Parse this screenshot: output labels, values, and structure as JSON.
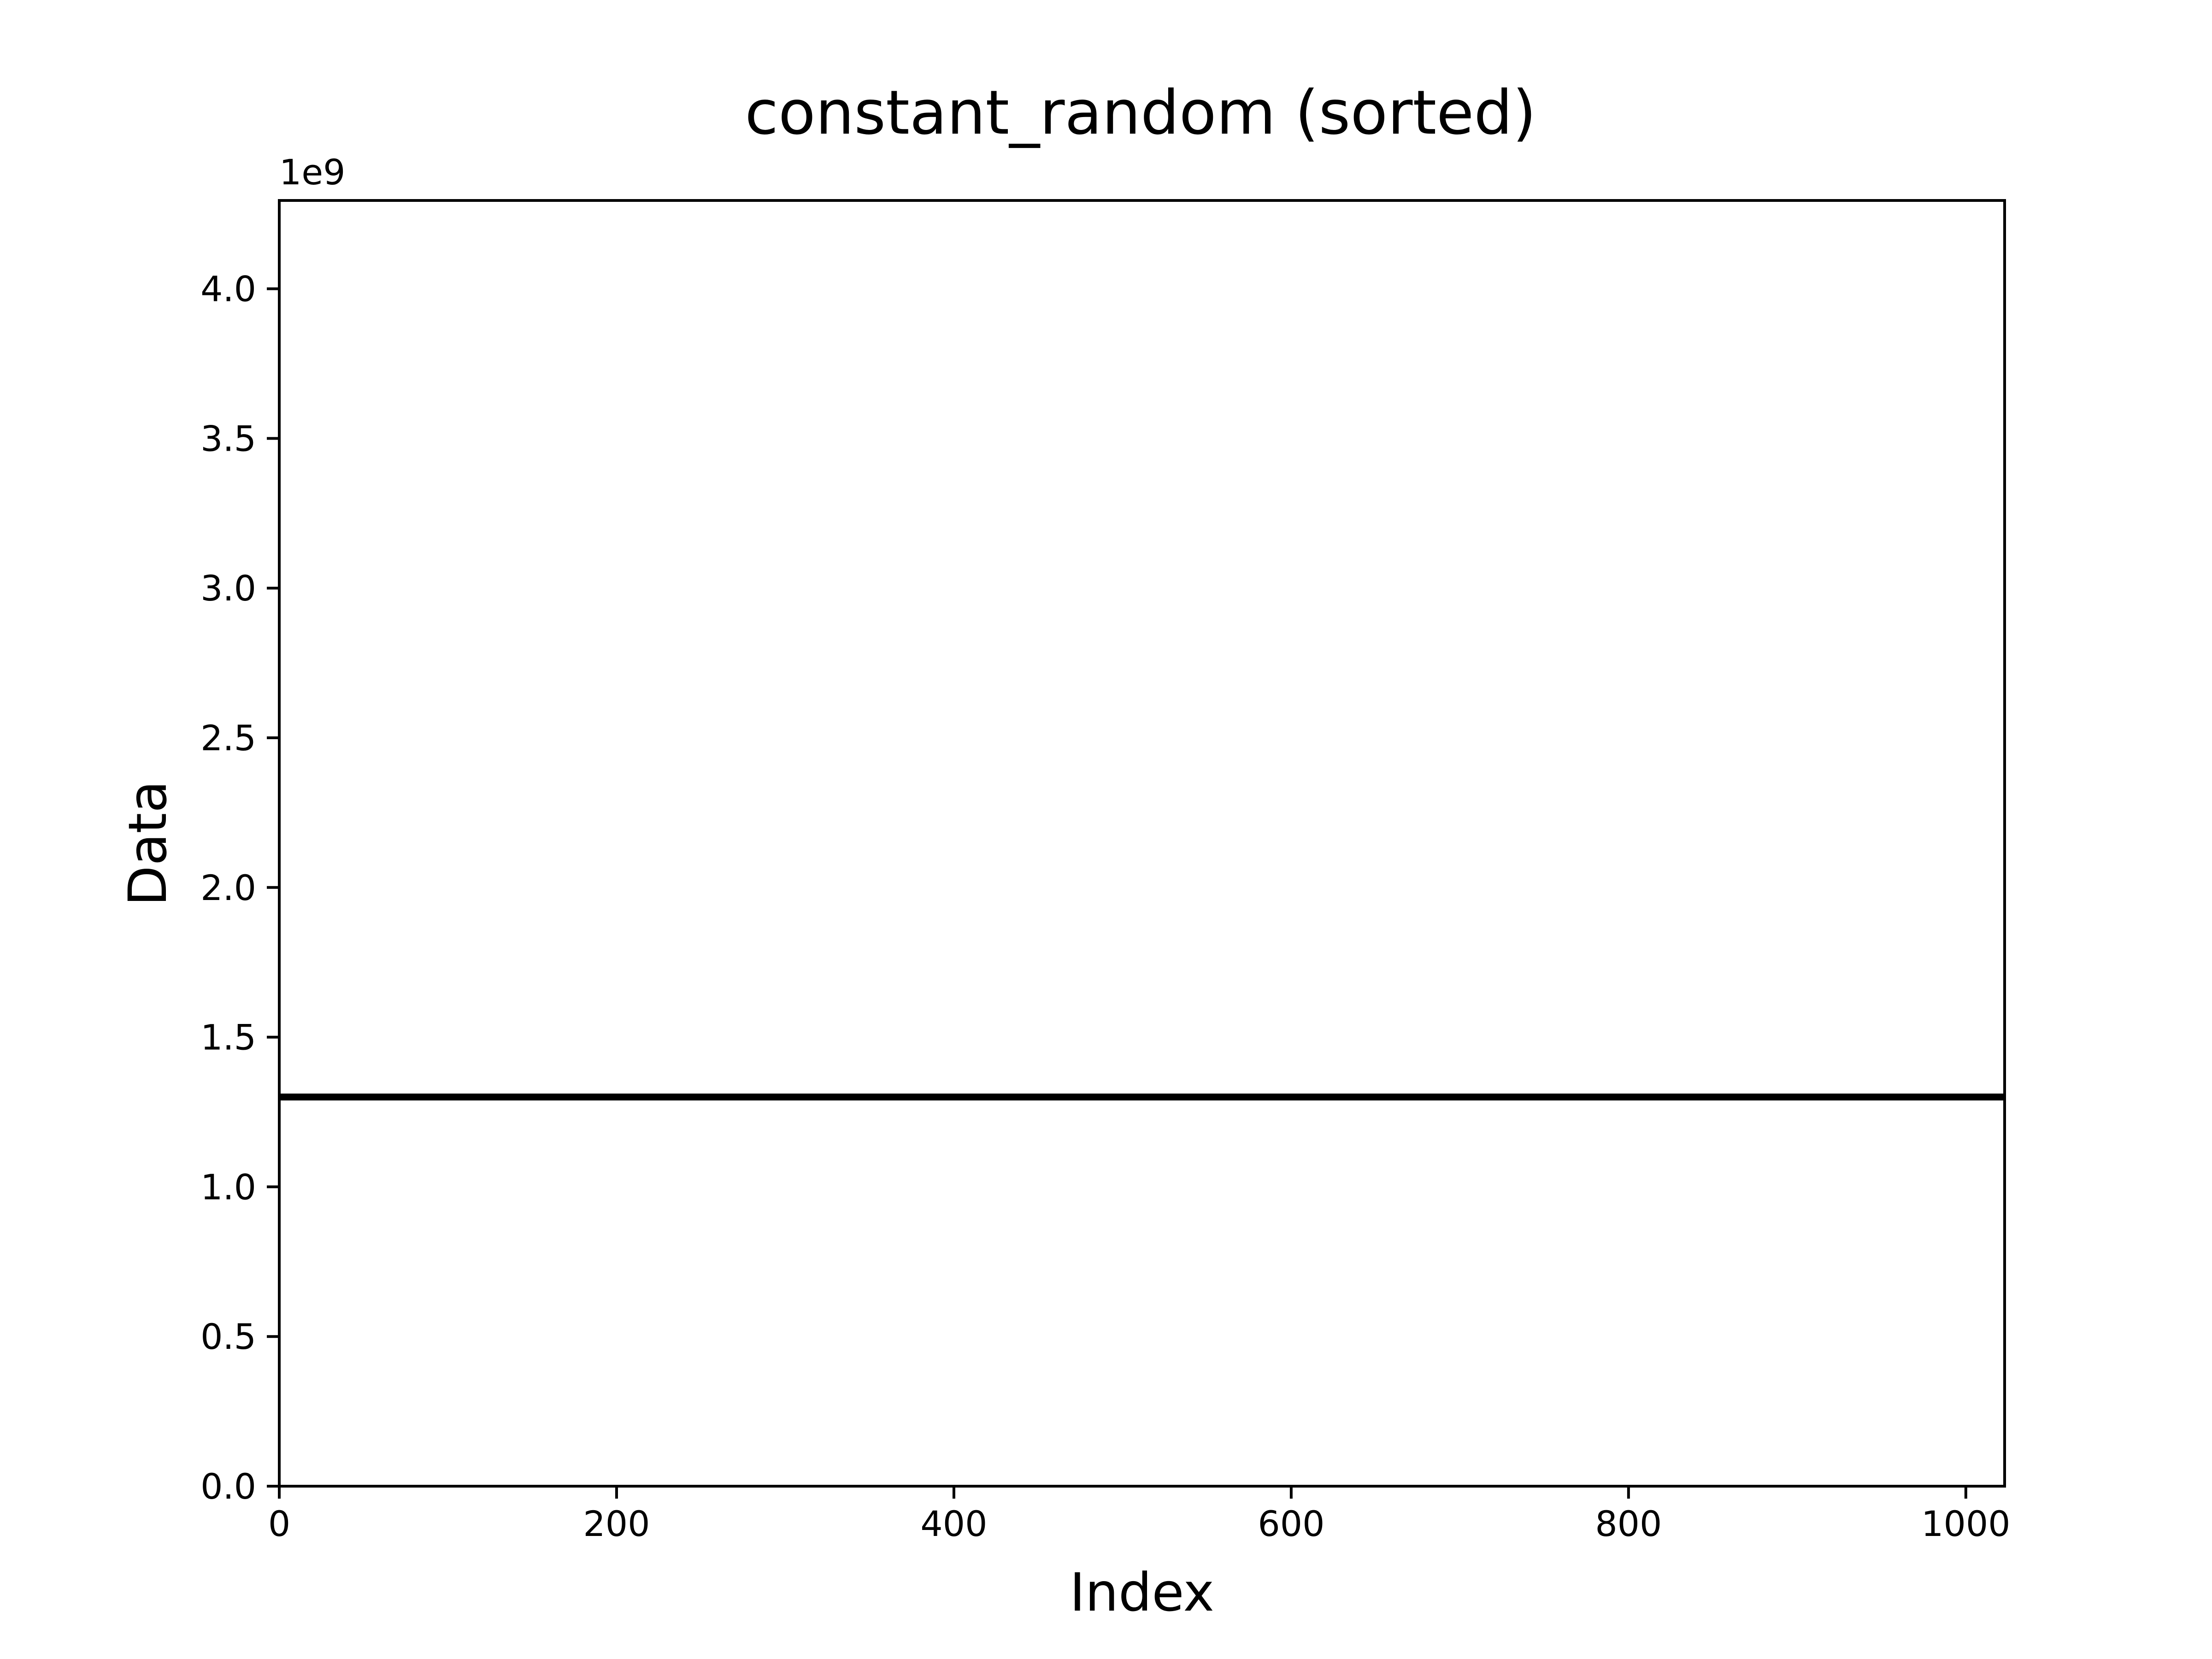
{
  "chart_data": {
    "type": "line",
    "title": "constant_random (sorted)",
    "xlabel": "Index",
    "ylabel": "Data",
    "y_offset_label": "1e9",
    "xlim": [
      0,
      1023
    ],
    "ylim": [
      0,
      4.294967296
    ],
    "x_ticks": [
      0,
      200,
      400,
      600,
      800,
      1000
    ],
    "x_tick_labels": [
      "0",
      "200",
      "400",
      "600",
      "800",
      "1000"
    ],
    "y_ticks": [
      0,
      0.5,
      1.0,
      1.5,
      2.0,
      2.5,
      3.0,
      3.5,
      4.0
    ],
    "y_tick_labels": [
      "0.0",
      "0.5",
      "1.0",
      "1.5",
      "2.0",
      "2.5",
      "3.0",
      "3.5",
      "4.0"
    ],
    "grid": false,
    "legend": "none",
    "series": [
      {
        "color": "#000000",
        "x": [
          0,
          1023
        ],
        "y": [
          1.3,
          1.3
        ]
      }
    ]
  }
}
